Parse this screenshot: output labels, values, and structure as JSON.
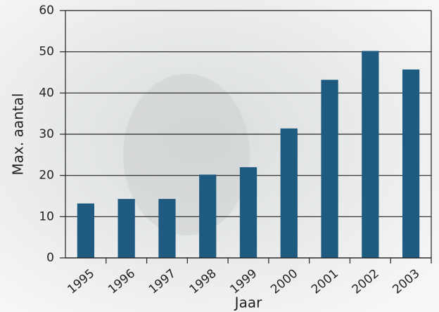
{
  "chart_data": {
    "type": "bar",
    "x_label": "Jaar",
    "y_label": "Max. aantal",
    "categories": [
      "1995",
      "1996",
      "1997",
      "1998",
      "1999",
      "2000",
      "2001",
      "2002",
      "2003"
    ],
    "values": [
      13.2,
      14.3,
      14.3,
      20.2,
      22,
      31.4,
      43.2,
      50.2,
      45.7
    ],
    "color": "#1f5a80",
    "ylim": [
      0,
      60
    ],
    "yticks": [
      0,
      10,
      20,
      30,
      40,
      50,
      60
    ],
    "grid": true
  }
}
